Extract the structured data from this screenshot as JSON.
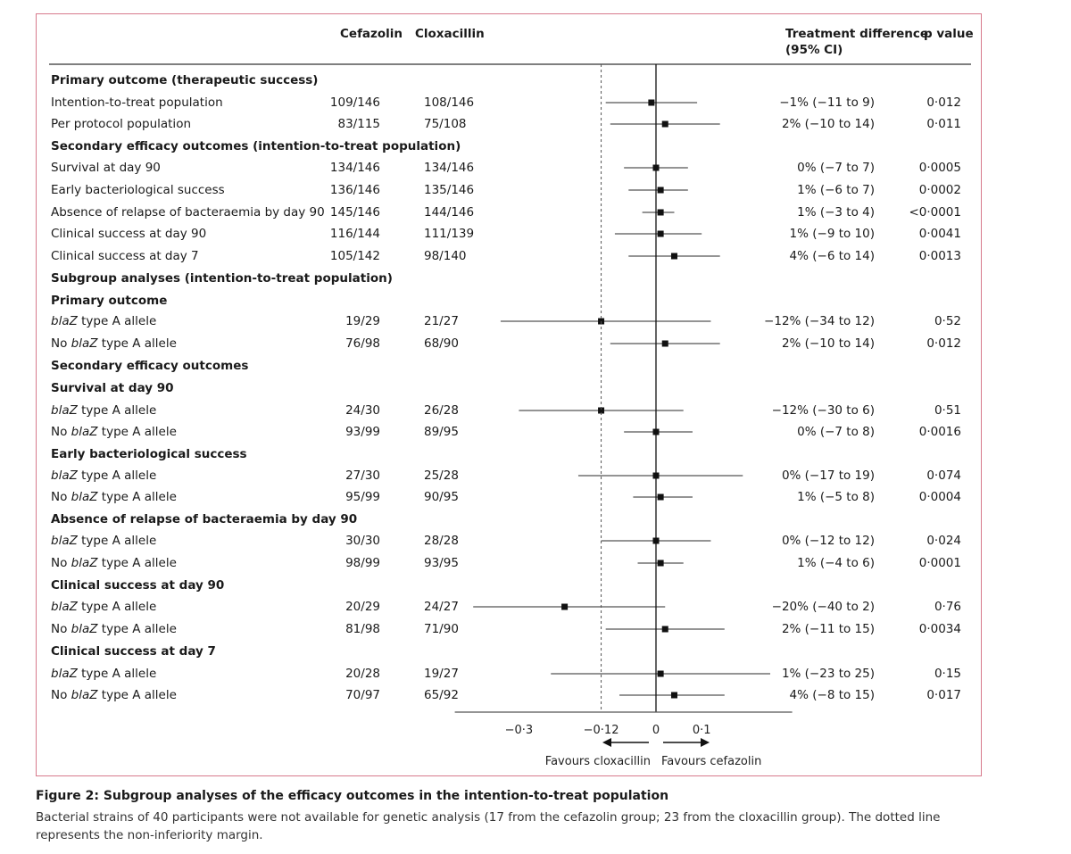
{
  "header": {
    "col_cefazolin": "Cefazolin",
    "col_cloxacillin": "Cloxacillin",
    "col_treatment_difference": "Treatment difference",
    "col_treatment_difference_ci": "(95% CI)",
    "col_p_value": "p value"
  },
  "rows": [
    {
      "label": "Primary outcome (therapeutic success)",
      "heading": true
    },
    {
      "label": "Intention-to-treat population",
      "cef": "109/146",
      "clox": "108/146",
      "diff": "−1% (−11 to 9)",
      "p": "0·012"
    },
    {
      "label": "Per protocol  population",
      "cef": "83/115",
      "clox": "75/108",
      "diff": "2% (−10 to 14)",
      "p": "0·011"
    },
    {
      "label": "Secondary efficacy outcomes (intention-to-treat population)",
      "heading": true
    },
    {
      "label": "Survival at day 90",
      "cef": "134/146",
      "clox": "134/146",
      "diff": "0% (−7 to 7)",
      "p": "0·0005"
    },
    {
      "label": "Early bacteriological success",
      "cef": "136/146",
      "clox": "135/146",
      "diff": "1% (−6 to 7)",
      "p": "0·0002"
    },
    {
      "label": "Absence of relapse of bacteraemia by day 90",
      "cef": "145/146",
      "clox": "144/146",
      "diff": "1% (−3 to 4)",
      "p": "<0·0001"
    },
    {
      "label": "Clinical success at day 90",
      "cef": "116/144",
      "clox": "111/139",
      "diff": "1% (−9 to 10)",
      "p": "0·0041"
    },
    {
      "label": "Clinical success at day 7",
      "cef": "105/142",
      "clox": "98/140",
      "diff": "4% (−6 to 14)",
      "p": "0·0013"
    },
    {
      "label": "Subgroup analyses (intention-to-treat population)",
      "heading": true
    },
    {
      "label": "Primary outcome",
      "heading": true
    },
    {
      "label": "blaZ type A allele",
      "cef": "19/29",
      "clox": "21/27",
      "diff": "−12% (−34 to 12)",
      "p": "0·52"
    },
    {
      "label": "No blaZ type A allele",
      "cef": "76/98",
      "clox": "68/90",
      "diff": "2% (−10 to 14)",
      "p": "0·012"
    },
    {
      "label": "Secondary efficacy outcomes",
      "heading": true
    },
    {
      "label": "Survival at day 90",
      "heading": true
    },
    {
      "label": "blaZ type A allele",
      "cef": "24/30",
      "clox": "26/28",
      "diff": "−12% (−30 to 6)",
      "p": "0·51"
    },
    {
      "label": "No blaZ type A allele",
      "cef": "93/99",
      "clox": "89/95",
      "diff": "0% (−7 to 8)",
      "p": "0·0016"
    },
    {
      "label": "Early bacteriological success",
      "heading": true
    },
    {
      "label": "blaZ type A allele",
      "cef": "27/30",
      "clox": "25/28",
      "diff": "0% (−17 to 19)",
      "p": "0·074"
    },
    {
      "label": "No blaZ type A allele",
      "cef": "95/99",
      "clox": "90/95",
      "diff": "1% (−5 to 8)",
      "p": "0·0004"
    },
    {
      "label": "Absence of relapse of bacteraemia by day 90",
      "heading": true
    },
    {
      "label": "blaZ type A allele",
      "cef": "30/30",
      "clox": "28/28",
      "diff": "0% (−12 to 12)",
      "p": "0·024"
    },
    {
      "label": "No blaZ type A allele",
      "cef": "98/99",
      "clox": "93/95",
      "diff": "1% (−4 to 6)",
      "p": "0·0001"
    },
    {
      "label": "Clinical success at day 90",
      "heading": true
    },
    {
      "label": "blaZ type A allele",
      "cef": "20/29",
      "clox": "24/27",
      "diff": "−20% (−40 to 2)",
      "p": "0·76"
    },
    {
      "label": "No blaZ type A allele",
      "cef": "81/98",
      "clox": "71/90",
      "diff": "2% (−11 to 15)",
      "p": "0·0034"
    },
    {
      "label": "Clinical success at day 7",
      "heading": true
    },
    {
      "label": "blaZ type A allele",
      "cef": "20/28",
      "clox": "19/27",
      "diff": "1% (−23 to 25)",
      "p": "0·15"
    },
    {
      "label": "No blaZ type A allele",
      "cef": "70/97",
      "clox": "65/92",
      "diff": "4% (−8 to 15)",
      "p": "0·017"
    }
  ],
  "chart_data": {
    "type": "forest",
    "x_ticks": [
      -0.3,
      -0.12,
      0,
      0.1
    ],
    "x_tick_labels": [
      "−0·3",
      "−0·12",
      "0",
      "0·1"
    ],
    "xlim": [
      -0.45,
      0.3
    ],
    "non_inferiority_margin": -0.12,
    "reference_line": 0,
    "favours_left": "Favours cloxacillin",
    "favours_right": "Favours cefazolin",
    "points": [
      {
        "est": -0.01,
        "lo": -0.11,
        "hi": 0.09
      },
      {
        "est": 0.02,
        "lo": -0.1,
        "hi": 0.14
      },
      {
        "est": 0.0,
        "lo": -0.07,
        "hi": 0.07
      },
      {
        "est": 0.01,
        "lo": -0.06,
        "hi": 0.07
      },
      {
        "est": 0.01,
        "lo": -0.03,
        "hi": 0.04
      },
      {
        "est": 0.01,
        "lo": -0.09,
        "hi": 0.1
      },
      {
        "est": 0.04,
        "lo": -0.06,
        "hi": 0.14
      },
      {
        "est": -0.12,
        "lo": -0.34,
        "hi": 0.12
      },
      {
        "est": 0.02,
        "lo": -0.1,
        "hi": 0.14
      },
      {
        "est": -0.12,
        "lo": -0.3,
        "hi": 0.06
      },
      {
        "est": 0.0,
        "lo": -0.07,
        "hi": 0.08
      },
      {
        "est": 0.0,
        "lo": -0.17,
        "hi": 0.19
      },
      {
        "est": 0.01,
        "lo": -0.05,
        "hi": 0.08
      },
      {
        "est": 0.0,
        "lo": -0.12,
        "hi": 0.12
      },
      {
        "est": 0.01,
        "lo": -0.04,
        "hi": 0.06
      },
      {
        "est": -0.2,
        "lo": -0.4,
        "hi": 0.02
      },
      {
        "est": 0.02,
        "lo": -0.11,
        "hi": 0.15
      },
      {
        "est": 0.01,
        "lo": -0.23,
        "hi": 0.25
      },
      {
        "est": 0.04,
        "lo": -0.08,
        "hi": 0.15
      }
    ]
  },
  "caption": {
    "title": "Figure 2: Subgroup analyses of the efficacy outcomes in the intention-to-treat population",
    "body": "Bacterial strains of 40 participants were not available for genetic analysis (17 from the cefazolin group; 23 from the cloxacillin group). The dotted line represents the non-inferiority margin."
  }
}
